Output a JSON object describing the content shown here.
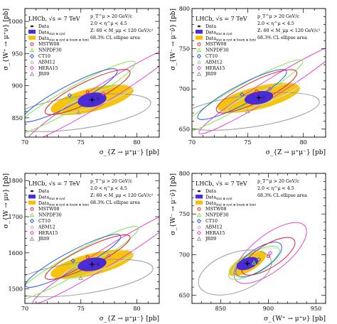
{
  "figure": {
    "background": "#ffffff",
    "series_colors": {
      "data_stat_syst": "#4b2bd6",
      "data_total": "#f6c000",
      "MSTW08": "#e8202a",
      "NNPDF30": "#7ee84a",
      "CT10": "#2d5cf0",
      "ABM12": "#b9ecec",
      "HERA15": "#e048d8",
      "JR09": "#9a9a9a"
    }
  },
  "chart_data": [
    {
      "type": "scatter",
      "subtype": "2D correlation ellipses",
      "xlabel": "σ_{Z → μ⁺μ⁻} [pb]",
      "ylabel": "σ_{W⁺ → μ⁺ν} [pb]",
      "xlim": [
        70,
        82
      ],
      "ylim": [
        820,
        1020
      ],
      "xticks": [
        "70",
        "75",
        "80"
      ],
      "yticks": [
        "850",
        "900",
        "950",
        "1000"
      ],
      "annotations": [
        "LHCb, √s = 7 TeV",
        "p_T^μ > 20 GeV/c",
        "2.0 < η^μ < 4.5",
        "Z: 60 < M_μμ < 120 GeV/c²",
        "68.3% CL ellipse area"
      ],
      "legend_placement": "top-left",
      "series": [
        {
          "name": "Data",
          "kind": "point",
          "center": [
            76.0,
            878
          ]
        },
        {
          "name": "Data stat ⊕ syst",
          "kind": "ellipse",
          "center": [
            76.0,
            878
          ],
          "radii": [
            1.3,
            11
          ],
          "angle": 10
        },
        {
          "name": "Data stat ⊕ syst ⊕ beam ⊕ lumi",
          "kind": "ellipse",
          "center": [
            76.0,
            878
          ],
          "radii": [
            3.8,
            18
          ],
          "angle": 14
        },
        {
          "name": "MSTW08",
          "kind": "ellipse",
          "center": [
            75.6,
            890
          ],
          "radii": [
            4.2,
            16
          ],
          "angle": 26
        },
        {
          "name": "NNPDF30",
          "kind": "ellipse",
          "center": [
            74.2,
            880
          ],
          "radii": [
            6.5,
            16
          ],
          "angle": 30
        },
        {
          "name": "CT10",
          "kind": "ellipse",
          "center": [
            74.0,
            885
          ],
          "radii": [
            4.8,
            15
          ],
          "angle": 28
        },
        {
          "name": "ABM12",
          "kind": "ellipse",
          "center": [
            76.5,
            880
          ],
          "radii": [
            3.5,
            10
          ],
          "angle": 20
        },
        {
          "name": "HERA15",
          "kind": "ellipse",
          "center": [
            77.0,
            888
          ],
          "radii": [
            8.0,
            14
          ],
          "angle": 32
        },
        {
          "name": "JR09",
          "kind": "ellipse",
          "center": [
            74.8,
            858
          ],
          "radii": [
            6.5,
            25
          ],
          "angle": 8
        }
      ]
    },
    {
      "type": "scatter",
      "subtype": "2D correlation ellipses",
      "xlabel": "σ_{Z → μ⁺μ⁻} [pb]",
      "ylabel": "σ_{W⁻ → μ⁻ν̄} [pb]",
      "xlim": [
        70,
        82
      ],
      "ylim": [
        640,
        800
      ],
      "xticks": [
        "70",
        "75",
        "80"
      ],
      "yticks": [
        "650",
        "700",
        "750",
        "800"
      ],
      "annotations": [
        "LHCb, √s = 7 TeV",
        "p_T^μ > 20 GeV/c",
        "2.0 < η^μ < 4.5",
        "Z: 60 < M_μμ < 120 GeV/c²",
        "68.3% CL ellipse area"
      ],
      "legend_placement": "top-left",
      "series": [
        {
          "name": "Data",
          "kind": "point",
          "center": [
            76.0,
            689
          ]
        },
        {
          "name": "Data stat ⊕ syst",
          "kind": "ellipse",
          "center": [
            76.0,
            689
          ],
          "radii": [
            1.3,
            8
          ],
          "angle": 10
        },
        {
          "name": "Data stat ⊕ syst ⊕ beam ⊕ lumi",
          "kind": "ellipse",
          "center": [
            76.0,
            689
          ],
          "radii": [
            3.8,
            14
          ],
          "angle": 14
        },
        {
          "name": "MSTW08",
          "kind": "ellipse",
          "center": [
            75.8,
            697
          ],
          "radii": [
            4.0,
            13
          ],
          "angle": 26
        },
        {
          "name": "NNPDF30",
          "kind": "ellipse",
          "center": [
            74.3,
            690
          ],
          "radii": [
            6.5,
            12
          ],
          "angle": 30
        },
        {
          "name": "CT10",
          "kind": "ellipse",
          "center": [
            74.5,
            693
          ],
          "radii": [
            4.5,
            12
          ],
          "angle": 28
        },
        {
          "name": "ABM12",
          "kind": "ellipse",
          "center": [
            76.4,
            690
          ],
          "radii": [
            3.5,
            8
          ],
          "angle": 20
        },
        {
          "name": "HERA15",
          "kind": "ellipse",
          "center": [
            77.0,
            700
          ],
          "radii": [
            7.5,
            11
          ],
          "angle": 32
        },
        {
          "name": "JR09",
          "kind": "ellipse",
          "center": [
            75.0,
            672
          ],
          "radii": [
            6.5,
            20
          ],
          "angle": 8
        }
      ]
    },
    {
      "type": "scatter",
      "subtype": "2D correlation ellipses",
      "xlabel": "σ_{Z → μ⁺μ⁻} [pb]",
      "ylabel": "σ_{W → μν} [pb]",
      "xlim": [
        70,
        82
      ],
      "ylim": [
        1460,
        1820
      ],
      "xticks": [
        "70",
        "75",
        "80"
      ],
      "yticks": [
        "1500",
        "1600",
        "1700",
        "1800"
      ],
      "annotations": [
        "LHCb, √s = 7 TeV",
        "p_T^μ > 20 GeV/c",
        "2.0 < η^μ < 4.5",
        "Z: 60 < M_μμ < 120 GeV/c²",
        "68.3% CL ellipse area"
      ],
      "legend_placement": "top-left",
      "series": [
        {
          "name": "Data",
          "kind": "point",
          "center": [
            76.0,
            1568
          ]
        },
        {
          "name": "Data stat ⊕ syst",
          "kind": "ellipse",
          "center": [
            76.0,
            1568
          ],
          "radii": [
            1.3,
            18
          ],
          "angle": 10
        },
        {
          "name": "Data stat ⊕ syst ⊕ beam ⊕ lumi",
          "kind": "ellipse",
          "center": [
            76.0,
            1568
          ],
          "radii": [
            3.8,
            30
          ],
          "angle": 14
        },
        {
          "name": "MSTW08",
          "kind": "ellipse",
          "center": [
            75.6,
            1588
          ],
          "radii": [
            4.2,
            26
          ],
          "angle": 26
        },
        {
          "name": "NNPDF30",
          "kind": "ellipse",
          "center": [
            74.5,
            1570
          ],
          "radii": [
            6.5,
            28
          ],
          "angle": 30
        },
        {
          "name": "CT10",
          "kind": "ellipse",
          "center": [
            74.3,
            1578
          ],
          "radii": [
            4.8,
            26
          ],
          "angle": 28
        },
        {
          "name": "ABM12",
          "kind": "ellipse",
          "center": [
            76.5,
            1568
          ],
          "radii": [
            3.5,
            18
          ],
          "angle": 20
        },
        {
          "name": "HERA15",
          "kind": "ellipse",
          "center": [
            77.5,
            1592
          ],
          "radii": [
            8.0,
            24
          ],
          "angle": 32
        },
        {
          "name": "JR09",
          "kind": "ellipse",
          "center": [
            75.0,
            1530
          ],
          "radii": [
            6.5,
            44
          ],
          "angle": 8
        }
      ]
    },
    {
      "type": "scatter",
      "subtype": "2D correlation ellipses",
      "xlabel": "σ_{W⁺ → μ⁺ν} [pb]",
      "ylabel": "σ_{W⁻ → μ⁻ν̄} [pb]",
      "xlim": [
        820,
        960
      ],
      "ylim": [
        640,
        800
      ],
      "xticks": [
        "850",
        "900",
        "950"
      ],
      "yticks": [
        "650",
        "700",
        "750",
        "800"
      ],
      "annotations": [
        "LHCb, √s = 7 TeV",
        "p_T^μ > 20 GeV/c",
        "2.0 < η^μ < 4.5",
        "68.3% CL ellipse area"
      ],
      "legend_placement": "top-left",
      "series": [
        {
          "name": "Data",
          "kind": "point",
          "center": [
            878,
            689
          ]
        },
        {
          "name": "Data stat ⊕ syst",
          "kind": "ellipse",
          "center": [
            878,
            689
          ],
          "radii": [
            12,
            7
          ],
          "angle": 20
        },
        {
          "name": "Data stat ⊕ syst ⊕ beam ⊕ lumi",
          "kind": "ellipse",
          "center": [
            878,
            689
          ],
          "radii": [
            22,
            10
          ],
          "angle": 30
        },
        {
          "name": "MSTW08",
          "kind": "ellipse",
          "center": [
            900,
            698
          ],
          "radii": [
            32,
            14
          ],
          "angle": 32
        },
        {
          "name": "NNPDF30",
          "kind": "ellipse",
          "center": [
            885,
            690
          ],
          "radii": [
            30,
            12
          ],
          "angle": 30
        },
        {
          "name": "CT10",
          "kind": "ellipse",
          "center": [
            890,
            694
          ],
          "radii": [
            28,
            13
          ],
          "angle": 34
        },
        {
          "name": "ABM12",
          "kind": "ellipse",
          "center": [
            888,
            690
          ],
          "radii": [
            28,
            12
          ],
          "angle": 26
        },
        {
          "name": "HERA15",
          "kind": "ellipse",
          "center": [
            902,
            702
          ],
          "radii": [
            46,
            22
          ],
          "angle": 38
        },
        {
          "name": "JR09",
          "kind": "ellipse",
          "center": [
            865,
            678
          ],
          "radii": [
            40,
            24
          ],
          "angle": 20
        }
      ]
    }
  ],
  "legend": {
    "data": "Data",
    "data_stat": "Data",
    "data_stat_sub": "stat ⊕ syst",
    "data_total": "Data",
    "data_total_sub": "stat ⊕ syst ⊕ beam ⊕ lumi",
    "mstw": "MSTW08",
    "nnpdf": "NNPDF30",
    "ct10": "CT10",
    "abm": "ABM12",
    "hera": "HERA15",
    "jr": "JR09"
  }
}
